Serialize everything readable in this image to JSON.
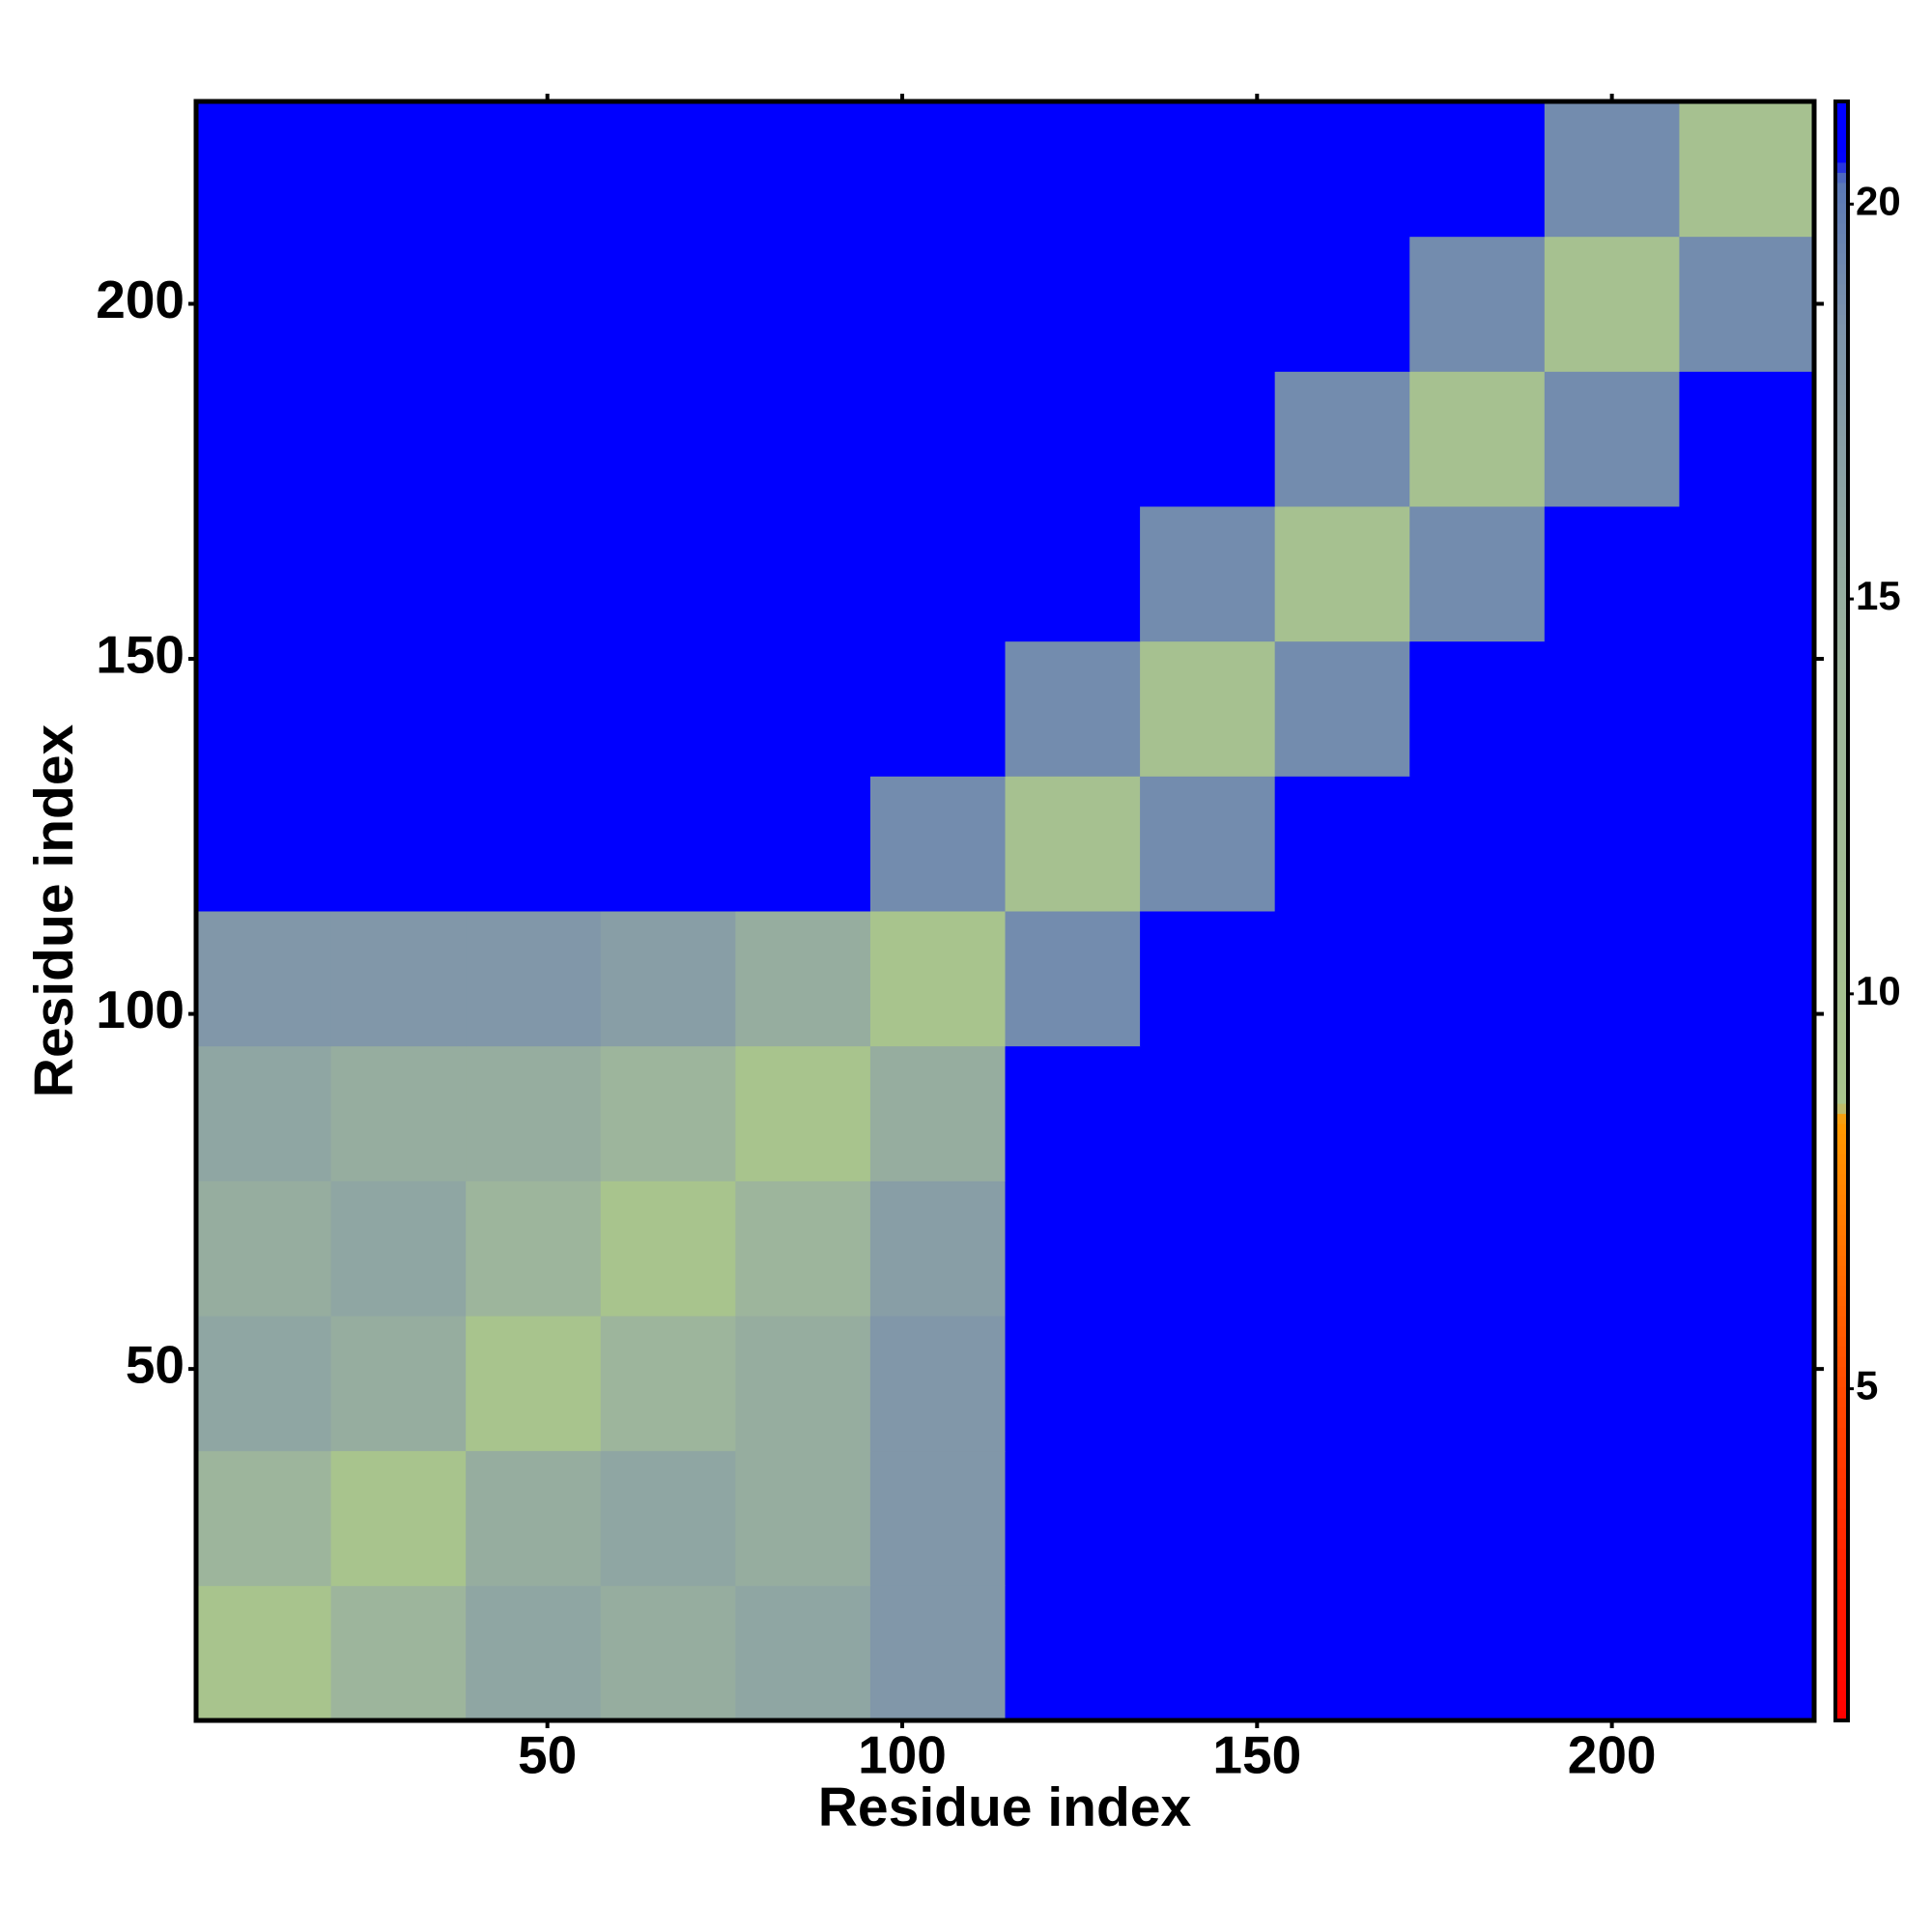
{
  "chart_data": {
    "type": "heatmap",
    "xlabel": "Residue index",
    "ylabel": "Residue index",
    "x_bins": [
      0.5,
      19.5,
      38.5,
      57.5,
      76.5,
      95.5,
      114.5,
      133.5,
      152.5,
      171.5,
      190.5,
      209.5,
      228.5
    ],
    "y_bins": [
      0.5,
      19.5,
      38.5,
      57.5,
      76.5,
      95.5,
      114.5,
      133.5,
      152.5,
      171.5,
      190.5,
      209.5,
      228.5
    ],
    "z": [
      [
        9,
        14,
        16,
        15,
        16,
        18,
        21,
        21,
        21,
        21,
        21,
        21
      ],
      [
        14,
        9,
        15,
        16,
        15,
        18,
        21,
        21,
        21,
        21,
        21,
        21
      ],
      [
        16,
        15,
        9,
        14,
        15,
        18,
        21,
        21,
        21,
        21,
        21,
        21
      ],
      [
        15,
        16,
        14,
        9,
        14,
        17,
        21,
        21,
        21,
        21,
        21,
        21
      ],
      [
        16,
        15,
        15,
        14,
        9,
        15,
        21,
        21,
        21,
        21,
        21,
        21
      ],
      [
        18,
        18,
        18,
        17,
        15,
        9,
        19,
        21,
        21,
        21,
        21,
        21
      ],
      [
        21,
        21,
        21,
        21,
        21,
        19,
        10,
        19,
        21,
        21,
        21,
        21
      ],
      [
        21,
        21,
        21,
        21,
        21,
        21,
        19,
        10,
        19,
        21,
        21,
        21
      ],
      [
        21,
        21,
        21,
        21,
        21,
        21,
        21,
        19,
        10,
        19,
        21,
        21
      ],
      [
        21,
        21,
        21,
        21,
        21,
        21,
        21,
        21,
        19,
        10,
        19,
        21
      ],
      [
        21,
        21,
        21,
        21,
        21,
        21,
        21,
        21,
        21,
        19,
        10,
        19
      ],
      [
        21,
        21,
        21,
        21,
        21,
        21,
        21,
        21,
        21,
        21,
        19,
        10
      ]
    ],
    "xlim": [
      0.5,
      228.5
    ],
    "ylim": [
      0.5,
      228.5
    ],
    "xticks": [
      50,
      100,
      150,
      200
    ],
    "yticks": [
      50,
      100,
      150,
      200
    ],
    "clim": [
      0.8,
      21.3
    ],
    "cticks": [
      5,
      10,
      15,
      20
    ],
    "colorscale": [
      [
        0.8,
        "#ff0000"
      ],
      [
        5,
        "#ff4a00"
      ],
      [
        8.4,
        "#ff9a00"
      ],
      [
        8.6,
        "#a9c58c"
      ],
      [
        14,
        "#9db59c"
      ],
      [
        18.5,
        "#7d93ab"
      ],
      [
        20.3,
        "#5a78b5"
      ],
      [
        20.6,
        "#0000ff"
      ]
    ]
  }
}
